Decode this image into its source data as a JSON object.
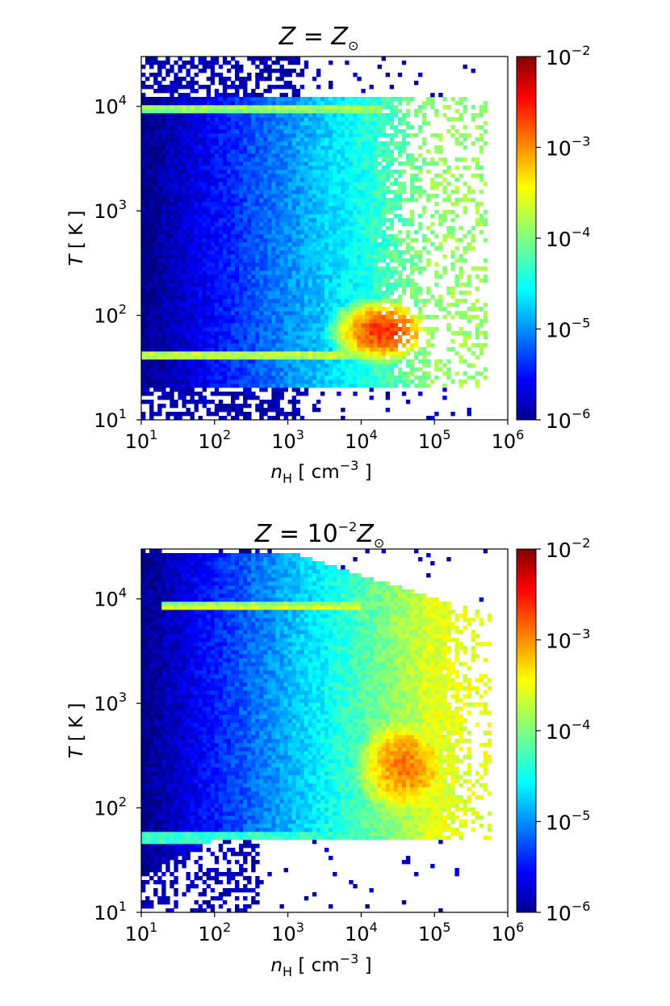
{
  "colors": {
    "colormap": "jet",
    "frame": "#000000"
  },
  "chart_data": [
    {
      "type": "heatmap",
      "title": {
        "main": "Z",
        "eq": " = ",
        "sym": "Z",
        "sub": "⊙",
        "pre": ""
      },
      "xlabel": {
        "var": "n",
        "sub": "H",
        "unit": " [ cm",
        "exp": "−3",
        "close": " ]"
      },
      "ylabel": {
        "var": "T",
        "unit": " [ K ]"
      },
      "x_scale": "log",
      "y_scale": "log",
      "xlim": [
        10,
        1000000
      ],
      "ylim": [
        10,
        30000
      ],
      "x_ticks": [
        {
          "base": "10",
          "exp": "1"
        },
        {
          "base": "10",
          "exp": "2"
        },
        {
          "base": "10",
          "exp": "3"
        },
        {
          "base": "10",
          "exp": "4"
        },
        {
          "base": "10",
          "exp": "5"
        },
        {
          "base": "10",
          "exp": "6"
        }
      ],
      "y_ticks": [
        {
          "base": "10",
          "exp": "1"
        },
        {
          "base": "10",
          "exp": "2"
        },
        {
          "base": "10",
          "exp": "3"
        },
        {
          "base": "10",
          "exp": "4"
        }
      ],
      "colorbar": {
        "scale": "log",
        "range": [
          1e-06,
          0.01
        ],
        "ticks": [
          {
            "base": "10",
            "exp": "−2"
          },
          {
            "base": "10",
            "exp": "−3"
          },
          {
            "base": "10",
            "exp": "−4"
          },
          {
            "base": "10",
            "exp": "−5"
          },
          {
            "base": "10",
            "exp": "−6"
          }
        ]
      },
      "features": [
        {
          "kind": "band",
          "y_log": 3.98,
          "y_width": 0.035,
          "x_log_range": [
            1.0,
            4.3
          ],
          "level": -3.6
        },
        {
          "kind": "band",
          "y_log": 1.62,
          "y_width": 0.04,
          "x_log_range": [
            1.0,
            4.6
          ],
          "level": -3.5
        },
        {
          "kind": "blob",
          "x_log": 4.3,
          "y_log": 1.85,
          "sx": 0.55,
          "sy": 0.25,
          "level": -2.7
        },
        {
          "kind": "background",
          "level_low_x": -6.0,
          "level_high_x": -3.9
        }
      ]
    },
    {
      "type": "heatmap",
      "title": {
        "main": "Z",
        "eq": " = ",
        "pre": "10",
        "pre_exp": "−2",
        "sym": "Z",
        "sub": "⊙"
      },
      "xlabel": {
        "var": "n",
        "sub": "H",
        "unit": " [ cm",
        "exp": "−3",
        "close": " ]"
      },
      "ylabel": {
        "var": "T",
        "unit": " [ K ]"
      },
      "x_scale": "log",
      "y_scale": "log",
      "xlim": [
        10,
        1000000
      ],
      "ylim": [
        10,
        30000
      ],
      "x_ticks": [
        {
          "base": "10",
          "exp": "1"
        },
        {
          "base": "10",
          "exp": "2"
        },
        {
          "base": "10",
          "exp": "3"
        },
        {
          "base": "10",
          "exp": "4"
        },
        {
          "base": "10",
          "exp": "5"
        },
        {
          "base": "10",
          "exp": "6"
        }
      ],
      "y_ticks": [
        {
          "base": "10",
          "exp": "1"
        },
        {
          "base": "10",
          "exp": "2"
        },
        {
          "base": "10",
          "exp": "3"
        },
        {
          "base": "10",
          "exp": "4"
        }
      ],
      "colorbar": {
        "scale": "log",
        "range": [
          1e-06,
          0.01
        ],
        "ticks": [
          {
            "base": "10",
            "exp": "−2"
          },
          {
            "base": "10",
            "exp": "−3"
          },
          {
            "base": "10",
            "exp": "−4"
          },
          {
            "base": "10",
            "exp": "−5"
          },
          {
            "base": "10",
            "exp": "−6"
          }
        ]
      },
      "features": [
        {
          "kind": "band",
          "y_log": 3.93,
          "y_width": 0.03,
          "x_log_range": [
            1.3,
            4.0
          ],
          "level": -3.4
        },
        {
          "kind": "blob",
          "x_log": 4.6,
          "y_log": 2.4,
          "sx": 0.6,
          "sy": 0.45,
          "level": -3.0
        },
        {
          "kind": "ridge",
          "y_log_low": 1.72,
          "level": -4.3
        },
        {
          "kind": "background",
          "level_low_x": -6.0,
          "level_high_x": -3.6
        }
      ]
    }
  ]
}
